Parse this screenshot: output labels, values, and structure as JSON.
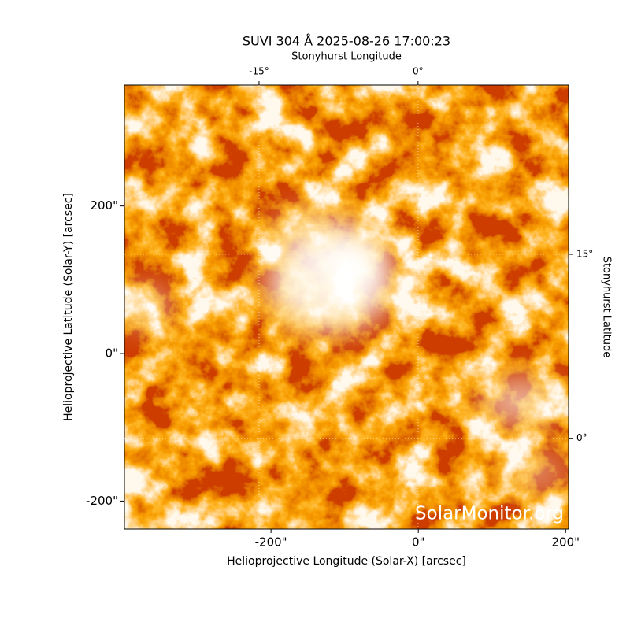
{
  "chart_data": {
    "type": "image",
    "title": "SUVI 304 Å 2025-08-26 17:00:23",
    "xlabel": "Helioprojective Longitude (Solar-X) [arcsec]",
    "ylabel": "Helioprojective Latitude (Solar-Y) [arcsec]",
    "x2label": "Stonyhurst Longitude",
    "y2label": "Stonyhurst Latitude",
    "xlim": [
      -399,
      204
    ],
    "ylim": [
      -238,
      364
    ],
    "xticks": [
      {
        "value": -200,
        "label": "-200\""
      },
      {
        "value": 0,
        "label": "0\""
      },
      {
        "value": 200,
        "label": "200\""
      }
    ],
    "yticks": [
      {
        "value": -200,
        "label": "-200\""
      },
      {
        "value": 0,
        "label": "0\""
      },
      {
        "value": 200,
        "label": "200\""
      }
    ],
    "x2lim": [
      -27.7,
      14.2
    ],
    "x2ticks": [
      {
        "value": -15,
        "label": "-15°"
      },
      {
        "value": 0,
        "label": "0°"
      }
    ],
    "y2lim": [
      -7.4,
      28.8
    ],
    "y2ticks": [
      {
        "value": 15,
        "label": "15°"
      },
      {
        "value": 0,
        "label": "0°"
      }
    ],
    "grid": true,
    "watermark": "SolarMonitor.org"
  }
}
